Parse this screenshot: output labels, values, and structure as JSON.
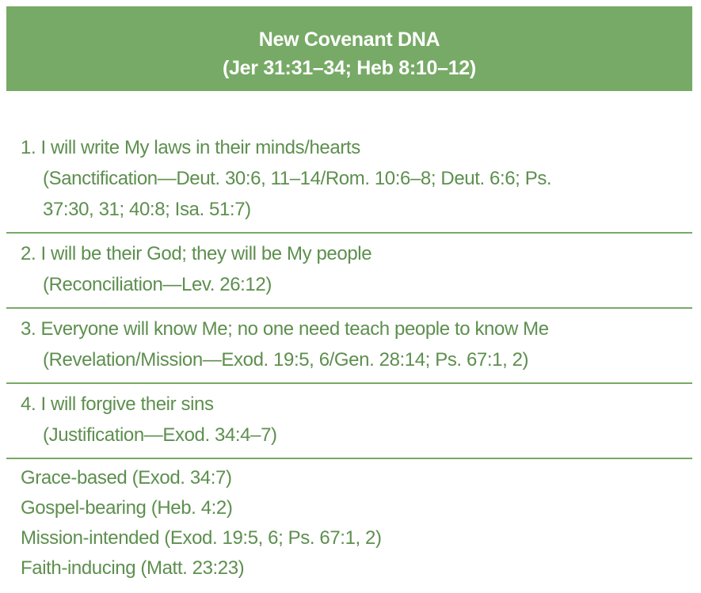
{
  "header": {
    "title": "New Covenant DNA",
    "subtitle": "(Jer 31:31–34; Heb 8:10–12)"
  },
  "items": [
    {
      "text": "1. I will write My laws in their minds/hearts",
      "ref_lines": [
        "(Sanctification—Deut. 30:6, 11–14/Rom. 10:6–8; Deut. 6:6; Ps.",
        "37:30, 31; 40:8; Isa. 51:7)"
      ]
    },
    {
      "text": "2. I will be their God; they will be My people",
      "ref_lines": [
        "(Reconciliation—Lev. 26:12)"
      ]
    },
    {
      "text": "3. Everyone will know Me; no one need teach people to know Me",
      "ref_lines": [
        "(Revelation/Mission—Exod. 19:5, 6/Gen. 28:14; Ps. 67:1, 2)"
      ]
    },
    {
      "text": "4. I will forgive their sins",
      "ref_lines": [
        "(Justification—Exod. 34:4–7)"
      ]
    }
  ],
  "summary": [
    "Grace-based (Exod. 34:7)",
    "Gospel-bearing (Heb. 4:2)",
    "Mission-intended (Exod. 19:5, 6; Ps. 67:1, 2)",
    "Faith-inducing (Matt. 23:23)"
  ],
  "colors": {
    "header_bg": "#77aa66",
    "header_text": "#ffffff",
    "body_text": "#5d8f4e",
    "divider": "#77aa66"
  }
}
